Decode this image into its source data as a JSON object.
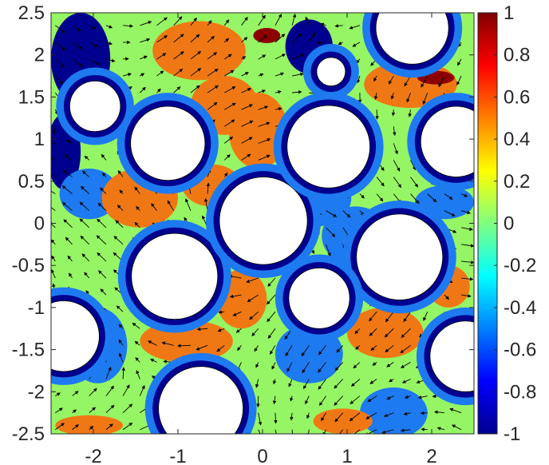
{
  "chart_data": {
    "type": "heatmap",
    "subtype": "filled-contour-with-quiver",
    "title": "",
    "xlabel": "",
    "ylabel": "",
    "xlim": [
      -2.5,
      2.5
    ],
    "ylim": [
      -2.5,
      2.5
    ],
    "x_ticks": [
      -2,
      -1,
      0,
      1,
      2
    ],
    "x_tick_labels": [
      "-2",
      "-1",
      "0",
      "1",
      "2"
    ],
    "y_ticks": [
      2.5,
      2,
      1.5,
      1,
      0.5,
      0,
      -0.5,
      -1,
      -1.5,
      -2,
      -2.5
    ],
    "y_tick_labels": [
      "2.5",
      "2",
      "1.5",
      "1",
      "0.5",
      "0",
      "-0.5",
      "-1",
      "-1.5",
      "-2",
      "-2.5"
    ],
    "grid": false,
    "colorbar": {
      "colormap": "jet",
      "clim": [
        -1,
        1
      ],
      "placement": "right",
      "ticks": [
        1,
        0.8,
        0.6,
        0.4,
        0.2,
        0,
        -0.2,
        -0.4,
        -0.6,
        -0.8,
        -1
      ],
      "tick_labels": [
        "1",
        "0.8",
        "0.6",
        "0.4",
        "0.2",
        "0",
        "-0.2",
        "-0.4",
        "-0.6",
        "-0.8",
        "-1"
      ]
    },
    "contour_levels": [
      {
        "range": [
          -1,
          -0.8
        ],
        "color": "#00008F"
      },
      {
        "range": [
          -0.8,
          -0.4
        ],
        "color": "#1E7AF0"
      },
      {
        "range": [
          -0.4,
          0.2
        ],
        "color": "#96F564"
      },
      {
        "range": [
          0.2,
          0.8
        ],
        "color": "#F07814"
      },
      {
        "range": [
          0.8,
          1
        ],
        "color": "#8C0000"
      }
    ],
    "obstacles": [
      {
        "cx": -1.12,
        "cy": 0.95,
        "r": 0.44
      },
      {
        "cx": -1.98,
        "cy": 1.39,
        "r": 0.3
      },
      {
        "cx": -1.04,
        "cy": -0.63,
        "r": 0.51
      },
      {
        "cx": 0.01,
        "cy": 0.03,
        "r": 0.52
      },
      {
        "cx": 0.78,
        "cy": 0.91,
        "r": 0.49
      },
      {
        "cx": 0.81,
        "cy": 1.8,
        "r": 0.17
      },
      {
        "cx": 1.77,
        "cy": 2.32,
        "r": 0.43
      },
      {
        "cx": 2.29,
        "cy": 0.97,
        "r": 0.42
      },
      {
        "cx": 1.62,
        "cy": -0.4,
        "r": 0.51
      },
      {
        "cx": 0.67,
        "cy": -0.89,
        "r": 0.36
      },
      {
        "cx": -2.35,
        "cy": -1.34,
        "r": 0.42
      },
      {
        "cx": -0.73,
        "cy": -2.2,
        "r": 0.5
      },
      {
        "cx": 2.4,
        "cy": -1.58,
        "r": 0.42
      }
    ],
    "features": [
      {
        "level": "-1",
        "cx": -2.15,
        "cy": 1.95,
        "rx": 0.35,
        "ry": 0.55
      },
      {
        "level": "-1",
        "cx": -2.35,
        "cy": 0.85,
        "rx": 0.2,
        "ry": 0.45
      },
      {
        "level": "-1",
        "cx": 0.55,
        "cy": 2.1,
        "rx": 0.28,
        "ry": 0.32
      },
      {
        "level": "-1",
        "cx": 1.55,
        "cy": -2.3,
        "rx": 0.18,
        "ry": 0.16
      },
      {
        "level": "-1",
        "cx": 0.55,
        "cy": -1.65,
        "rx": 0.08,
        "ry": 0.08
      },
      {
        "level": "-0.6",
        "cx": -2.05,
        "cy": 0.35,
        "rx": 0.35,
        "ry": 0.3
      },
      {
        "level": "-0.6",
        "cx": 0.55,
        "cy": 0.3,
        "rx": 0.5,
        "ry": 0.35
      },
      {
        "level": "-0.6",
        "cx": 1.1,
        "cy": -0.15,
        "rx": 0.4,
        "ry": 0.35
      },
      {
        "level": "-0.6",
        "cx": 0.55,
        "cy": -1.55,
        "rx": 0.4,
        "ry": 0.35
      },
      {
        "level": "-0.6",
        "cx": -1.95,
        "cy": -1.45,
        "rx": 0.35,
        "ry": 0.45
      },
      {
        "level": "-0.6",
        "cx": 1.55,
        "cy": -2.25,
        "rx": 0.4,
        "ry": 0.3
      },
      {
        "level": "-0.6",
        "cx": 2.15,
        "cy": 0.25,
        "rx": 0.35,
        "ry": 0.2
      },
      {
        "level": "0.6",
        "cx": -0.75,
        "cy": 2.05,
        "rx": 0.55,
        "ry": 0.35
      },
      {
        "level": "0.6",
        "cx": -0.45,
        "cy": 1.4,
        "rx": 0.4,
        "ry": 0.35
      },
      {
        "level": "0.6",
        "cx": -0.05,
        "cy": 1.1,
        "rx": 0.35,
        "ry": 0.45
      },
      {
        "level": "0.6",
        "cx": -1.45,
        "cy": 0.3,
        "rx": 0.45,
        "ry": 0.35
      },
      {
        "level": "0.6",
        "cx": -0.6,
        "cy": 0.45,
        "rx": 0.35,
        "ry": 0.25
      },
      {
        "level": "0.6",
        "cx": 1.75,
        "cy": 1.65,
        "rx": 0.55,
        "ry": 0.28
      },
      {
        "level": "0.6",
        "cx": -0.25,
        "cy": -0.9,
        "rx": 0.3,
        "ry": 0.35
      },
      {
        "level": "0.6",
        "cx": -0.9,
        "cy": -1.4,
        "rx": 0.55,
        "ry": 0.25
      },
      {
        "level": "0.6",
        "cx": 1.45,
        "cy": -1.3,
        "rx": 0.45,
        "ry": 0.3
      },
      {
        "level": "0.6",
        "cx": 2.2,
        "cy": -0.75,
        "rx": 0.25,
        "ry": 0.25
      },
      {
        "level": "0.6",
        "cx": 0.95,
        "cy": -2.35,
        "rx": 0.35,
        "ry": 0.15
      },
      {
        "level": "0.6",
        "cx": -2.05,
        "cy": -2.4,
        "rx": 0.4,
        "ry": 0.12
      },
      {
        "level": "1",
        "cx": 0.05,
        "cy": 2.23,
        "rx": 0.16,
        "ry": 0.09
      },
      {
        "level": "1",
        "cx": 2.05,
        "cy": 1.73,
        "rx": 0.22,
        "ry": 0.08
      }
    ]
  }
}
